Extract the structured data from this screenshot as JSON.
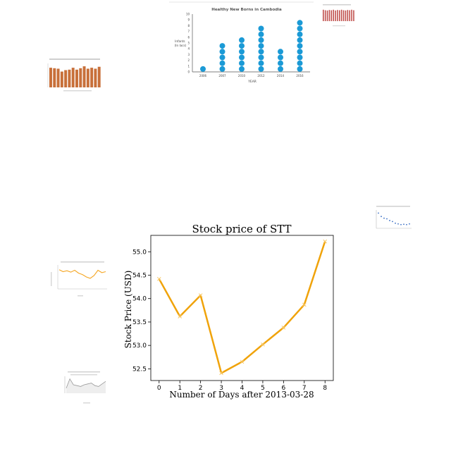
{
  "colors": {
    "main_line": "#f0a30a",
    "dot_blue": "#1b9ad6",
    "bar_brown": "#c8703a",
    "bar_red": "#c0504d",
    "thumb_orange": "#f5a623",
    "thumb_gray": "#999999",
    "thumb_blue": "#3a6fc4"
  },
  "chart_data": [
    {
      "type": "line",
      "title": "Stock price of STT",
      "xlabel": "Number of Days after 2013-03-28",
      "ylabel": "Stock Price (USD)",
      "x": [
        0,
        1,
        2,
        3,
        4,
        5,
        6,
        7,
        8
      ],
      "series": [
        {
          "values": [
            54.42,
            53.62,
            54.07,
            52.41,
            52.65,
            53.02,
            53.38,
            53.87,
            55.22
          ]
        }
      ],
      "xlim": [
        -0.4,
        8.4
      ],
      "ylim": [
        52.25,
        55.35
      ],
      "yticks": [
        52.5,
        53.0,
        53.5,
        54.0,
        54.5,
        55.0
      ],
      "grid": false,
      "marker": "x"
    },
    {
      "type": "scatter",
      "title": "Healthy New Borns in Cambodia",
      "xlabel": "YEAR",
      "ylabel": "Infants\n(In lacs)",
      "categories": [
        "2006",
        "2007",
        "2010",
        "2012",
        "2014",
        "2016"
      ],
      "values": [
        1,
        5,
        6,
        8,
        4,
        9
      ],
      "ylim": [
        0,
        10
      ],
      "yticks": [
        0,
        1,
        2,
        3,
        4,
        5,
        6,
        7,
        8,
        9,
        10
      ]
    }
  ],
  "thumbs": {
    "brown_bars": [
      0.82,
      0.8,
      0.78,
      0.66,
      0.72,
      0.74,
      0.82,
      0.74,
      0.8,
      0.88,
      0.78,
      0.82,
      0.78,
      0.86
    ],
    "red_bars": [
      0.9,
      0.86,
      0.84,
      0.88,
      0.86,
      0.9,
      0.84,
      0.88,
      0.86,
      0.9,
      0.86,
      0.84,
      0.88,
      0.86,
      0.9,
      0.86
    ],
    "orange_line": [
      0.8,
      0.72,
      0.76,
      0.7,
      0.78,
      0.66,
      0.6,
      0.5,
      0.44,
      0.56,
      0.78,
      0.68,
      0.72
    ],
    "blue_scatter": [
      0.9,
      0.7,
      0.6,
      0.56,
      0.46,
      0.4,
      0.3,
      0.26,
      0.22,
      0.24,
      0.22,
      0.26
    ],
    "gray_area": [
      0.3,
      0.85,
      0.5,
      0.45,
      0.4,
      0.5,
      0.55,
      0.6,
      0.45,
      0.4,
      0.55,
      0.7
    ]
  }
}
